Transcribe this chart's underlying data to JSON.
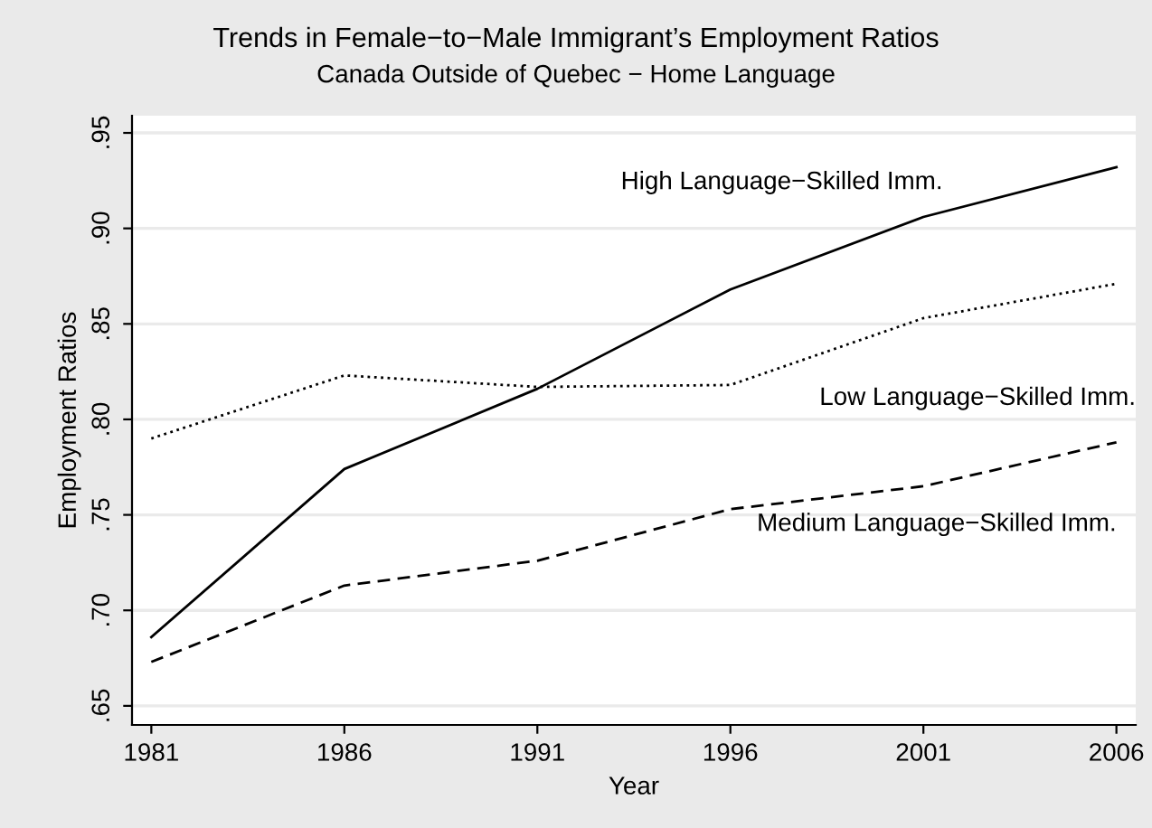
{
  "chart_data": {
    "type": "line",
    "title": "Trends in Female−to−Male Immigrant’s Employment Ratios",
    "subtitle": "Canada Outside of Quebec − Home Language",
    "xlabel": "Year",
    "ylabel": "Employment Ratios",
    "x": [
      1981,
      1986,
      1991,
      1996,
      2001,
      2006
    ],
    "series": [
      {
        "name": "High Language−Skilled Imm.",
        "color": "#000000",
        "line_style": "solid",
        "values": [
          0.686,
          0.774,
          0.816,
          0.868,
          0.906,
          0.932
        ]
      },
      {
        "name": "Low Language−Skilled Imm.",
        "color": "#000000",
        "line_style": "dotted",
        "values": [
          0.79,
          0.823,
          0.817,
          0.818,
          0.853,
          0.871
        ]
      },
      {
        "name": "Medium Language−Skilled Imm.",
        "color": "#000000",
        "line_style": "dashed",
        "values": [
          0.673,
          0.713,
          0.726,
          0.753,
          0.765,
          0.788
        ]
      }
    ],
    "xlim": [
      1980.5,
      2006.5
    ],
    "xticks": [
      1981,
      1986,
      1991,
      1996,
      2001,
      2006
    ],
    "ylim": [
      0.64,
      0.959
    ],
    "yticks": [
      {
        "value": 0.65,
        "label": ".65"
      },
      {
        "value": 0.7,
        "label": ".70"
      },
      {
        "value": 0.75,
        "label": ".75"
      },
      {
        "value": 0.8,
        "label": ".80"
      },
      {
        "value": 0.85,
        "label": ".85"
      },
      {
        "value": 0.9,
        "label": ".90"
      },
      {
        "value": 0.95,
        "label": ".95"
      }
    ],
    "grid": "y",
    "legend": false
  }
}
